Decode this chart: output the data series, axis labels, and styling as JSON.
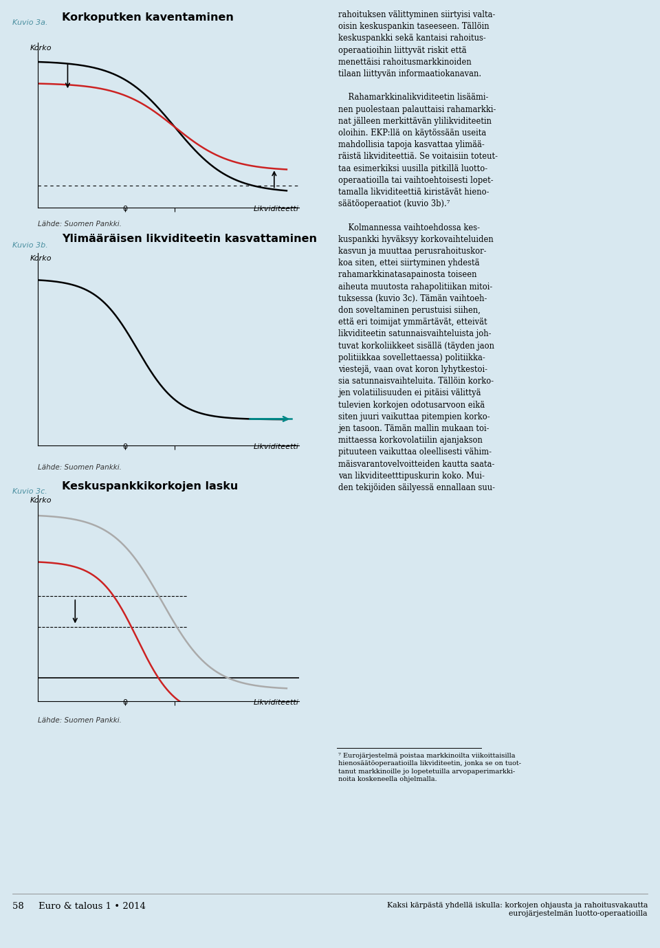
{
  "bg_color": "#d8e8f0",
  "teal_color": "#4a8fa0",
  "kuvio3a_title": "Korkoputken kaventaminen",
  "kuvio3a_label": "Kuvio 3a.",
  "kuvio3b_title": "Ylimääräisen likviditeetin kasvattaminen",
  "kuvio3b_label": "Kuvio 3b.",
  "kuvio3c_title": "Keskuspankkikorkojen lasku",
  "kuvio3c_label": "Kuvio 3c.",
  "ylabel": "Korko",
  "xlabel": "Likviditeetti",
  "source": "Lähde: Suomen Pankki.",
  "footer_left": "58     Euro & talous 1 • 2014",
  "footer_right": "Kaksi kärpästä yhdellä iskulla: korkojen ohjausta ja rahoitusvakautta\neurojärjestelmän luotto-operaatioilla",
  "right_col_text": "rahoituksen välittyminen siirtyisi valta-\noisin keskuspankin taseeseen. Tällöin\nkeskuspankki sekä kantaisi rahoitus-\noperaatioihin liittyvät riskit että\nmenettäisi rahoitusmarkkinoiden\ntilaan liittyvän informaatiokanavan.\n\n    Rahamarkkinalikviditeetin lisäämi-\nnen puolestaan palauttaisi rahamarkki-\nnat jälleen merkittävän ylilikviditeetin\noloihin. EKP:llä on käytössään useita\nmahdollisia tapoja kasvattaa ylimää-\nräistä likviditeettiä. Se voitaisiin toteut-\ntaa esimerkiksi uusilla pitkillä luotto-\noperaatioilla tai vaihtoehtoisesti lopet-\ntamalla likviditeettiä kiristävät hieno-\nsäätöoperaatiot (kuvio 3b).⁷\n\n    Kolmannessa vaihtoehdossa kes-\nkuspankki hyväksyy korkovaihteluiden\nkasvun ja muuttaa perusrahoituskor-\nkoa siten, ettei siirtyminen yhdestä\nrahamarkkinatasapainosta toiseen\naiheuta muutosta rahapolitiikan mitoi-\ntuksessa (kuvio 3c). Tämän vaihtoeh-\ndon soveltaminen perustuisi siihen,\nettä eri toimijat ymmärtävät, etteivät\nlikviditeetin satunnaisvaihteluista joh-\ntuvat korkoliikkeet sisällä (täyden jaon\npolitiikkaa sovellettaessa) politiikka-\nviestejä, vaan ovat koron lyhytkestoi-\nsia satunnaisvaihteluita. Tällöin korko-\njen volatiilisuuden ei pitäisi välittyä\ntulevien korkojen odotusarvoon eikä\nsiten juuri vaikuttaa pitempien korko-\njen tasoon. Tämän mallin mukaan toi-\nmittaessa korkovolatiilin ajanjakson\npituuteen vaikuttaa oleellisesti vähim-\nmäisvarantovelvoitteiden kautta saata-\nvan likviditeetttipuskurin koko. Mui-\nden tekijöiden säilyessä ennallaan suu-",
  "footnote_line1": "⁷ Eurojärjestelmä poistaa markkinoilta viikoittaisilla",
  "footnote_line2": "hienosäätöoperaatioilla likviditeetin, jonka se on tuot-",
  "footnote_line3": "tanut markkinoille jo lopetetuilla arvopaperimarkki-",
  "footnote_line4": "noita koskeneella ohjelmalla."
}
